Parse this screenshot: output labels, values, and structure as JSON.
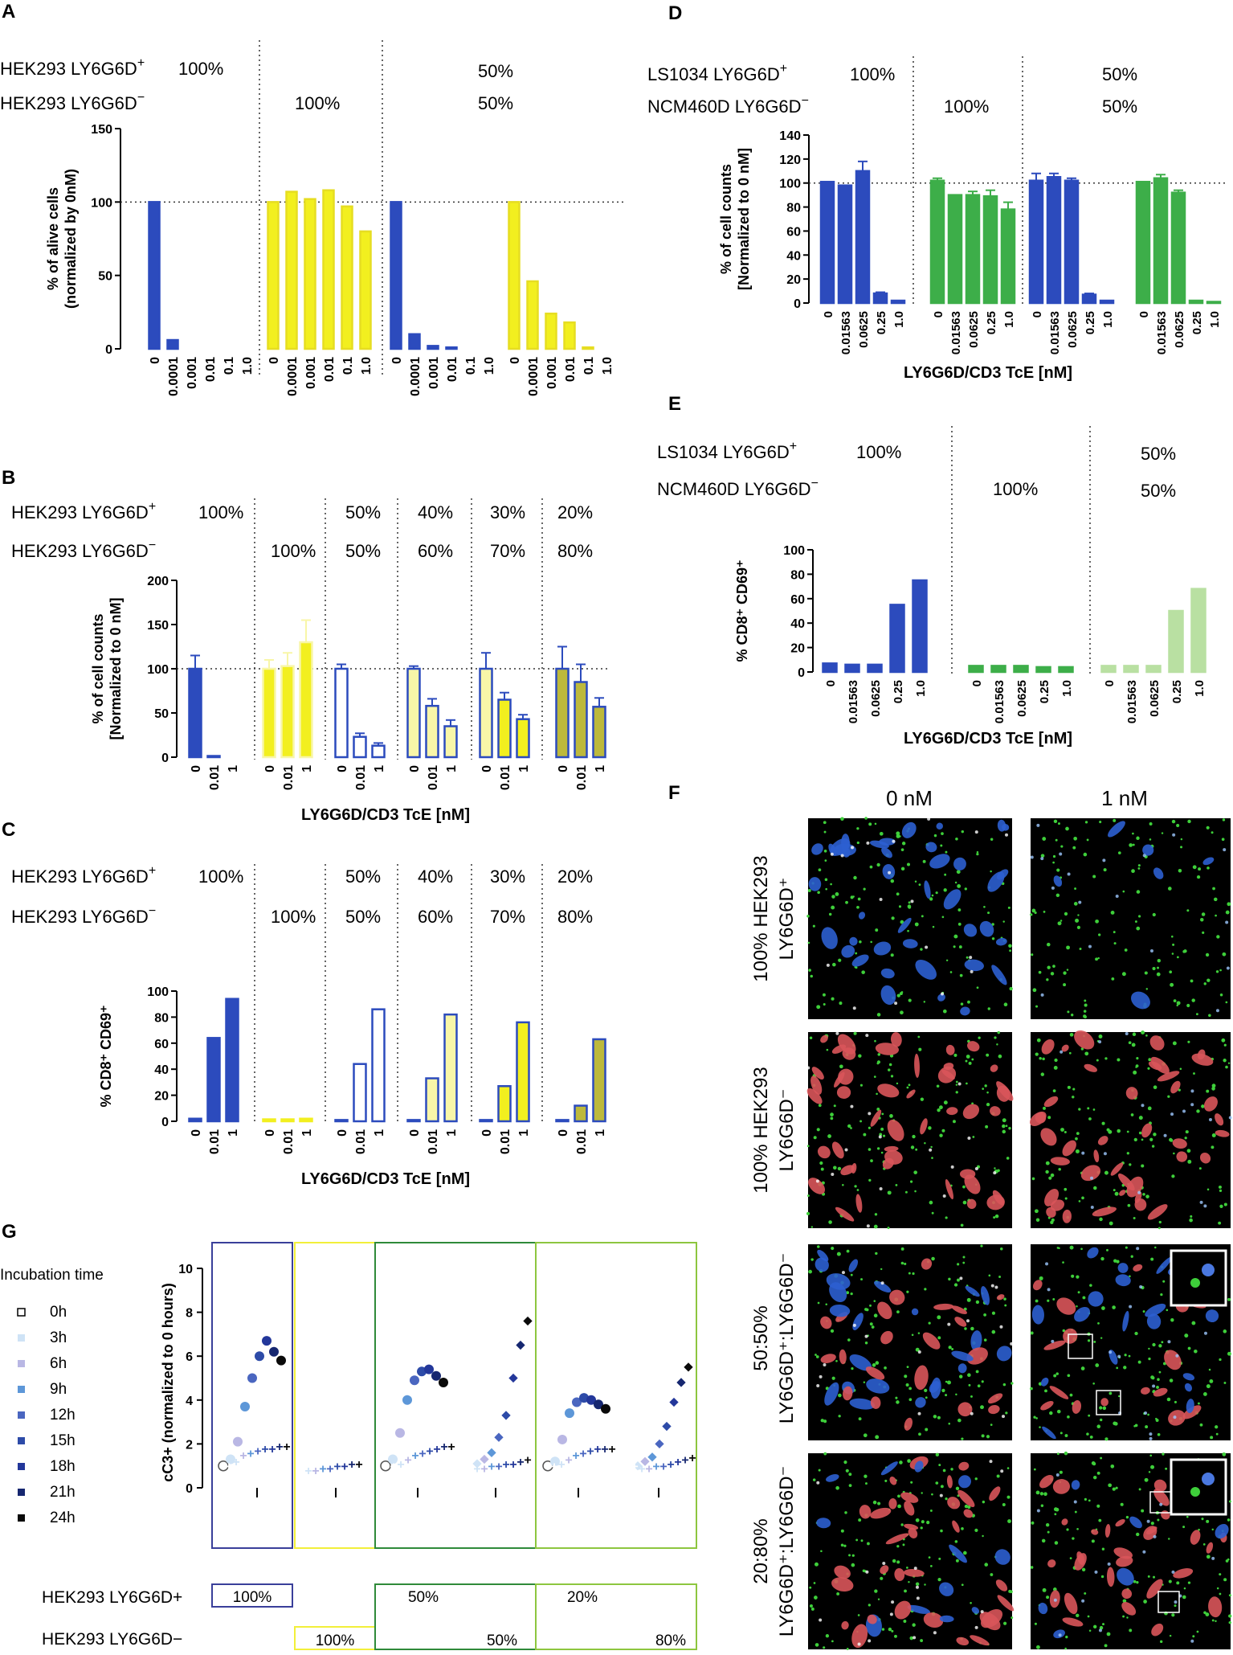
{
  "panel_labels": {
    "A": "A",
    "B": "B",
    "C": "C",
    "D": "D",
    "E": "E",
    "F": "F",
    "G": "G"
  },
  "colors": {
    "blue": "#2c4bbd",
    "yellow": "#f2ef1f",
    "lightyellow": "#f8f6a8",
    "olive": "#bdb93c",
    "green": "#3dae49",
    "lightgreen": "#b9e0a2",
    "grid": "#555555"
  },
  "headers": {
    "hek_pos": "HEK293 LY6G6D",
    "hek_neg": "HEK293 LY6G6D",
    "ls_pos": "LS1034 LY6G6D",
    "ncm_neg": "NCM460D LY6G6D",
    "sup_plus": "+",
    "sup_minus": "−"
  },
  "panel_A": {
    "pos_pcts": [
      "100%",
      "",
      "50%"
    ],
    "neg_pcts": [
      "",
      "100%",
      "50%"
    ]
  },
  "panel_BC": {
    "pos_pcts": [
      "100%",
      "",
      "50%",
      "40%",
      "30%",
      "20%"
    ],
    "neg_pcts": [
      "",
      "100%",
      "50%",
      "60%",
      "70%",
      "80%"
    ]
  },
  "panel_DE": {
    "pos_pcts": [
      "100%",
      "",
      "50%"
    ],
    "neg_pcts": [
      "",
      "100%",
      "50%"
    ]
  },
  "chart_data": [
    {
      "id": "A",
      "type": "bar",
      "ylabel": "% of alive cells",
      "ylabel2": "(normalized by 0nM)",
      "ylim": [
        0,
        150
      ],
      "yticks": [
        0,
        50,
        100,
        150
      ],
      "refline": 100,
      "groups": [
        {
          "categories": [
            "0",
            "0.0001",
            "0.001",
            "0.01",
            "0.1",
            "1.0"
          ],
          "values": [
            100,
            6,
            0,
            0,
            0,
            0
          ],
          "color": "blue"
        },
        {
          "categories": [
            "0",
            "0.0001",
            "0.001",
            "0.01",
            "0.1",
            "1.0"
          ],
          "values": [
            100,
            107,
            102,
            108,
            97,
            80
          ],
          "color": "yellow"
        },
        {
          "categories": [
            "0",
            "0.0001",
            "0.001",
            "0.01",
            "0.1",
            "1.0"
          ],
          "values": [
            100,
            10,
            2,
            1,
            0,
            0
          ],
          "color": "blue"
        },
        {
          "categories": [
            "0",
            "0.0001",
            "0.001",
            "0.01",
            "0.1",
            "1.0"
          ],
          "values": [
            100,
            46,
            24,
            18,
            1,
            0
          ],
          "color": "yellow"
        }
      ]
    },
    {
      "id": "B",
      "type": "bar",
      "ylabel": "% of cell counts",
      "ylabel2": "[Normalized to 0 nM]",
      "xlabel": "LY6G6D/CD3 TcE [nM]",
      "ylim": [
        0,
        200
      ],
      "yticks": [
        0,
        50,
        100,
        150,
        200
      ],
      "refline": 100,
      "groups": [
        {
          "categories": [
            "0",
            "0.01",
            "1"
          ],
          "values": [
            100,
            1,
            0
          ],
          "err": [
            15,
            0,
            0
          ],
          "fill": [
            "blue",
            "blue",
            "blue"
          ],
          "stroke": "blue"
        },
        {
          "categories": [
            "0",
            "0.01",
            "1"
          ],
          "values": [
            100,
            103,
            130
          ],
          "err": [
            10,
            15,
            25
          ],
          "fill": [
            "yellow",
            "yellow",
            "yellow"
          ],
          "stroke": "lightyellow"
        },
        {
          "categories": [
            "0",
            "0.01",
            "1"
          ],
          "values": [
            100,
            23,
            13
          ],
          "err": [
            5,
            4,
            3
          ],
          "fill": [
            "white",
            "white",
            "white"
          ],
          "stroke": "blue"
        },
        {
          "categories": [
            "0",
            "0.01",
            "1"
          ],
          "values": [
            100,
            58,
            35
          ],
          "err": [
            3,
            8,
            7
          ],
          "fill": [
            "lightyellow",
            "lightyellow",
            "lightyellow"
          ],
          "stroke": "blue"
        },
        {
          "categories": [
            "0",
            "0.01",
            "1"
          ],
          "values": [
            100,
            65,
            43
          ],
          "err": [
            18,
            8,
            5
          ],
          "fill": [
            "lightyellow",
            "yellow",
            "yellow"
          ],
          "stroke": "blue"
        },
        {
          "categories": [
            "0",
            "0.01",
            "1"
          ],
          "values": [
            100,
            85,
            57
          ],
          "err": [
            25,
            20,
            10
          ],
          "fill": [
            "olive",
            "olive",
            "olive"
          ],
          "stroke": "blue"
        }
      ]
    },
    {
      "id": "C",
      "type": "bar",
      "ylabel": "% CD8⁺ CD69⁺",
      "xlabel": "LY6G6D/CD3 TcE [nM]",
      "ylim": [
        0,
        100
      ],
      "yticks": [
        0,
        20,
        40,
        60,
        80,
        100
      ],
      "groups": [
        {
          "categories": [
            "0",
            "0.01",
            "1"
          ],
          "values": [
            2,
            64,
            94
          ],
          "fill": [
            "blue",
            "blue",
            "blue"
          ],
          "stroke": "blue"
        },
        {
          "categories": [
            "0",
            "0.01",
            "1"
          ],
          "values": [
            1.5,
            1.5,
            2
          ],
          "fill": [
            "yellow",
            "yellow",
            "yellow"
          ],
          "stroke": "yellow"
        },
        {
          "categories": [
            "0",
            "0.01",
            "1"
          ],
          "values": [
            1,
            44,
            86
          ],
          "fill": [
            "white",
            "white",
            "white"
          ],
          "stroke": "blue"
        },
        {
          "categories": [
            "0",
            "0.01",
            "1"
          ],
          "values": [
            1,
            33,
            82
          ],
          "fill": [
            "lightyellow",
            "lightyellow",
            "lightyellow"
          ],
          "stroke": "blue"
        },
        {
          "categories": [
            "0",
            "0.01",
            "1"
          ],
          "values": [
            1,
            27,
            76
          ],
          "fill": [
            "yellow",
            "yellow",
            "yellow"
          ],
          "stroke": "blue"
        },
        {
          "categories": [
            "0",
            "0.01",
            "1"
          ],
          "values": [
            1,
            12,
            63
          ],
          "fill": [
            "olive",
            "olive",
            "olive"
          ],
          "stroke": "blue"
        }
      ]
    },
    {
      "id": "D",
      "type": "bar",
      "ylabel": "% of cell counts",
      "ylabel2": "[Normalized to 0 nM]",
      "xlabel": "LY6G6D/CD3 TcE [nM]",
      "ylim": [
        0,
        140
      ],
      "yticks": [
        0,
        20,
        40,
        60,
        80,
        100,
        120,
        140
      ],
      "refline": 100,
      "groups": [
        {
          "categories": [
            "0",
            "0.01563",
            "0.0625",
            "0.25",
            "1.0"
          ],
          "values": [
            101,
            98,
            110,
            8,
            2
          ],
          "err": [
            0,
            0,
            8,
            1,
            0
          ],
          "color": "blue"
        },
        {
          "categories": [
            "0",
            "0.01563",
            "0.0625",
            "0.25",
            "1.0"
          ],
          "values": [
            102,
            90,
            90,
            89,
            78
          ],
          "err": [
            2,
            0,
            3,
            5,
            6
          ],
          "color": "green"
        },
        {
          "categories": [
            "0",
            "0.01563",
            "0.0625",
            "0.25",
            "1.0"
          ],
          "values": [
            102,
            105,
            102,
            7,
            2
          ],
          "err": [
            6,
            3,
            2,
            1,
            0
          ],
          "color": "blue"
        },
        {
          "categories": [
            "0",
            "0.01563",
            "0.0625",
            "0.25",
            "1.0"
          ],
          "values": [
            101,
            104,
            92,
            2,
            1
          ],
          "err": [
            0,
            3,
            2,
            0,
            0
          ],
          "color": "green"
        }
      ]
    },
    {
      "id": "E",
      "type": "bar",
      "ylabel": "% CD8⁺ CD69⁺",
      "xlabel": "LY6G6D/CD3 TcE [nM]",
      "ylim": [
        0,
        100
      ],
      "yticks": [
        0,
        20,
        40,
        60,
        80,
        100
      ],
      "groups": [
        {
          "categories": [
            "0",
            "0.01563",
            "0.0625",
            "0.25",
            "1.0"
          ],
          "values": [
            7,
            6,
            6,
            55,
            75
          ],
          "color": "blue"
        },
        {
          "categories": [
            "0",
            "0.01563",
            "0.0625",
            "0.25",
            "1.0"
          ],
          "values": [
            5,
            5,
            5,
            4,
            4
          ],
          "color": "green"
        },
        {
          "categories": [
            "0",
            "0.01563",
            "0.0625",
            "0.25",
            "1.0"
          ],
          "values": [
            5,
            5,
            5,
            50,
            68
          ],
          "color": "lightgreen"
        }
      ]
    },
    {
      "id": "G",
      "type": "scatter",
      "ylabel": "cC3+ (normalized to 0 hours)",
      "ylim": [
        0,
        10
      ],
      "yticks": [
        0,
        2,
        4,
        6,
        8,
        10
      ],
      "legend_title": "Incubation time",
      "legend": [
        "0h",
        "3h",
        "6h",
        "9h",
        "12h",
        "15h",
        "18h",
        "21h",
        "24h"
      ],
      "legend_colors": [
        "#ffffff",
        "#cfe3f6",
        "#b9b7e4",
        "#5d97d8",
        "#4a66c0",
        "#2d4ba8",
        "#23379a",
        "#162770",
        "#0a0a0a"
      ],
      "series_high": [
        {
          "name": "100% pos high",
          "values": [
            1.0,
            1.3,
            2.1,
            3.7,
            5.0,
            6.0,
            6.7,
            6.2,
            5.8
          ]
        },
        {
          "name": "50:50 high",
          "values": [
            1.0,
            1.3,
            2.5,
            4.0,
            4.9,
            5.3,
            5.4,
            5.1,
            4.8
          ]
        },
        {
          "name": "50:50 rising",
          "values": [
            1.0,
            1.1,
            1.3,
            1.6,
            2.3,
            3.3,
            5.0,
            6.5,
            7.6
          ]
        },
        {
          "name": "20:80 high",
          "values": [
            1.0,
            1.2,
            2.2,
            3.4,
            3.9,
            4.1,
            4.0,
            3.8,
            3.6
          ]
        },
        {
          "name": "20:80 rising",
          "values": [
            1.0,
            1.0,
            1.2,
            1.4,
            2.0,
            2.8,
            3.9,
            4.8,
            5.5
          ]
        }
      ],
      "series_low": [
        {
          "name": "100% pos low",
          "values": [
            1.0,
            1.2,
            1.5,
            1.6,
            1.7,
            1.8,
            1.8,
            1.9,
            1.9
          ]
        },
        {
          "name": "100% neg low",
          "values": [
            1.0,
            0.8,
            0.8,
            0.9,
            0.9,
            1.0,
            1.0,
            1.1,
            1.1
          ]
        },
        {
          "name": "50:50 low",
          "values": [
            1.0,
            1.1,
            1.3,
            1.5,
            1.6,
            1.7,
            1.8,
            1.9,
            1.9
          ]
        },
        {
          "name": "50:50 rising low",
          "values": [
            1.0,
            0.9,
            0.9,
            1.0,
            1.0,
            1.1,
            1.1,
            1.2,
            1.3
          ]
        },
        {
          "name": "20:80 low",
          "values": [
            1.0,
            1.1,
            1.3,
            1.5,
            1.6,
            1.7,
            1.8,
            1.8,
            1.8
          ]
        },
        {
          "name": "20:80 rising low",
          "values": [
            1.0,
            0.9,
            0.9,
            1.0,
            1.0,
            1.1,
            1.2,
            1.3,
            1.4
          ]
        }
      ],
      "bottom": {
        "pos_label": "HEK293 LY6G6D",
        "neg_label": "HEK293 LY6G6D",
        "box1": "100%",
        "box2": "100%",
        "box3_top": "50%",
        "box3_bot": "50%",
        "box4_top": "20%",
        "box4_bot": "80%"
      }
    }
  ],
  "panel_F": {
    "col_headers": [
      "0 nM",
      "1 nM"
    ],
    "row_labels": [
      [
        "100% HEK293",
        "LY6G6D⁺"
      ],
      [
        "100% HEK293",
        "LY6G6D⁻"
      ],
      [
        "50:50%",
        "LY6G6D⁺:LY6G6D⁻"
      ],
      [
        "20:80%",
        "LY6G6D⁺:LY6G6D⁻"
      ]
    ]
  }
}
